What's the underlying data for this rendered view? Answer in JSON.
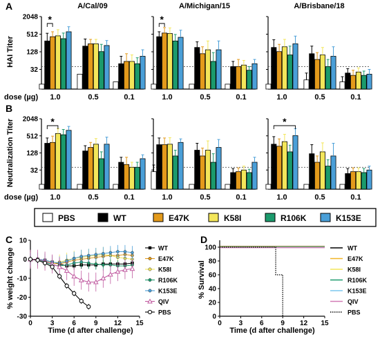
{
  "colors": {
    "PBS": "#ffffff",
    "WT": "#000000",
    "E47K": "#e39a1b",
    "K58I": "#f3e65a",
    "R106K": "#1b9a6c",
    "K153E": "#4a9fd8",
    "QIV": "#c05aa0"
  },
  "panel_labels": {
    "A": "A",
    "B": "B",
    "C": "C",
    "D": "D"
  },
  "dose_label": "dose (µg)",
  "significance_mark": "*",
  "bar_legend": [
    "PBS",
    "WT",
    "E47K",
    "K58I",
    "R106K",
    "K153E"
  ],
  "chart_data": [
    {
      "id": "A",
      "type": "bar",
      "ylabel": "HAI Titer",
      "y_scale": "log2",
      "ylim": [
        8,
        2048
      ],
      "y_ticks": [
        "32",
        "128",
        "512",
        "2048"
      ],
      "threshold": 40,
      "groups": [
        "1.0",
        "0.5",
        "0.1"
      ],
      "series_names": [
        "PBS",
        "WT",
        "E47K",
        "K58I",
        "R106K",
        "K153E"
      ],
      "subplots": [
        {
          "title": "A/Cal/09",
          "values": [
            [
              10,
              300,
              420,
              450,
              360,
              620
            ],
            [
              22,
              200,
              240,
              240,
              130,
              210
            ],
            [
              12,
              50,
              60,
              60,
              50,
              90
            ]
          ],
          "errors": [
            [
              0,
              250,
              200,
              280,
              200,
              300
            ],
            [
              0,
              150,
              100,
              100,
              100,
              100
            ],
            [
              0,
              40,
              50,
              40,
              30,
              60
            ]
          ]
        },
        {
          "title": "A/Michigan/15",
          "values": [
            [
              10,
              420,
              560,
              540,
              300,
              400
            ],
            [
              10,
              180,
              110,
              150,
              60,
              150
            ],
            [
              10,
              40,
              40,
              45,
              30,
              50
            ]
          ],
          "errors": [
            [
              0,
              200,
              300,
              300,
              200,
              300
            ],
            [
              0,
              100,
              80,
              150,
              60,
              150
            ],
            [
              0,
              20,
              30,
              20,
              10,
              20
            ]
          ]
        },
        {
          "title": "A/Brisbane/18",
          "values": [
            [
              10,
              180,
              130,
              190,
              100,
              240
            ],
            [
              14,
              110,
              70,
              100,
              40,
              90
            ],
            [
              12,
              24,
              20,
              26,
              20,
              22
            ]
          ],
          "errors": [
            [
              0,
              150,
              100,
              150,
              100,
              200
            ],
            [
              10,
              90,
              50,
              80,
              30,
              100
            ],
            [
              6,
              10,
              10,
              10,
              8,
              10
            ]
          ]
        }
      ],
      "significance": [
        [
          0,
          0,
          2
        ],
        [
          1,
          0,
          2
        ]
      ]
    },
    {
      "id": "B",
      "type": "bar",
      "ylabel": "Neutralization Titer",
      "y_scale": "log2",
      "ylim": [
        8,
        2048
      ],
      "y_ticks": [
        "32",
        "128",
        "512",
        "2048"
      ],
      "threshold": 40,
      "groups": [
        "1.0",
        "0.5",
        "0.1"
      ],
      "series_names": [
        "PBS",
        "WT",
        "E47K",
        "K58I",
        "R106K",
        "K153E"
      ],
      "subplots": [
        {
          "title": "",
          "values": [
            [
              10,
              280,
              300,
              620,
              560,
              800
            ],
            [
              10,
              150,
              200,
              260,
              80,
              260
            ],
            [
              10,
              60,
              50,
              40,
              40,
              80
            ]
          ],
          "errors": [
            [
              0,
              150,
              200,
              300,
              300,
              300
            ],
            [
              0,
              80,
              100,
              150,
              60,
              200
            ],
            [
              0,
              30,
              40,
              20,
              20,
              30
            ]
          ]
        },
        {
          "title": "",
          "values": [
            [
              28,
              250,
              250,
              260,
              100,
              300
            ],
            [
              10,
              160,
              100,
              160,
              60,
              200
            ],
            [
              10,
              26,
              28,
              32,
              26,
              60
            ]
          ],
          "errors": [
            [
              20,
              180,
              180,
              180,
              60,
              100
            ],
            [
              0,
              120,
              90,
              180,
              60,
              180
            ],
            [
              0,
              10,
              10,
              12,
              8,
              30
            ]
          ]
        },
        {
          "title": "",
          "values": [
            [
              10,
              260,
              220,
              320,
              140,
              520
            ],
            [
              10,
              120,
              60,
              140,
              44,
              100
            ],
            [
              10,
              24,
              28,
              28,
              26,
              32
            ]
          ],
          "errors": [
            [
              0,
              220,
              180,
              260,
              100,
              400
            ],
            [
              0,
              130,
              40,
              150,
              30,
              180
            ],
            [
              0,
              12,
              10,
              10,
              10,
              12
            ]
          ]
        }
      ],
      "significance": [
        [
          0,
          0,
          3
        ],
        [
          2,
          0,
          5
        ]
      ]
    },
    {
      "id": "C",
      "type": "line",
      "xlabel": "Time (d after challenge)",
      "ylabel": "% weight change",
      "xlim": [
        0,
        15
      ],
      "ylim": [
        -30,
        10
      ],
      "x_ticks": [
        "0",
        "3",
        "6",
        "9",
        "12",
        "15"
      ],
      "y_ticks": [
        "-30",
        "-20",
        "-10",
        "0",
        "10"
      ],
      "x": [
        0,
        1,
        2,
        3,
        4,
        5,
        6,
        7,
        8,
        9,
        10,
        11,
        12,
        13,
        14
      ],
      "series": [
        {
          "name": "WT",
          "values": [
            0,
            0,
            -0.5,
            -1.5,
            -2.5,
            -3.5,
            -3.5,
            -3,
            -3,
            -3,
            -2.5,
            -2.5,
            -2.5,
            -2.5,
            -2
          ],
          "error": 2
        },
        {
          "name": "E47K",
          "values": [
            0,
            0,
            -1,
            -2,
            -2.5,
            -1.5,
            -0.5,
            0,
            0.5,
            1,
            1.5,
            2,
            2,
            2.5,
            2
          ],
          "error": 3
        },
        {
          "name": "K58I",
          "values": [
            0,
            0,
            -1,
            -2,
            -1.5,
            -0.5,
            0.5,
            1,
            1.5,
            2,
            2.5,
            2,
            1,
            0.5,
            0
          ],
          "error": 4
        },
        {
          "name": "R106K",
          "values": [
            0,
            0,
            -1.5,
            -3,
            -3.5,
            -3,
            -2,
            -1.5,
            -2,
            -2.5,
            -3,
            -3,
            -3.5,
            -3.5,
            -3
          ],
          "error": 3
        },
        {
          "name": "K153E",
          "values": [
            0,
            0,
            -0.5,
            -1.5,
            -2,
            -1,
            0.5,
            1.5,
            2,
            2.5,
            3,
            3.5,
            4,
            4,
            3.5
          ],
          "error": 3.5
        },
        {
          "name": "QIV",
          "values": [
            0,
            0,
            -1,
            -2.5,
            -4,
            -6,
            -9,
            -11,
            -12,
            -12,
            -10,
            -8,
            -6.5,
            -5.5,
            -5
          ],
          "error": 5
        },
        {
          "name": "PBS",
          "values": [
            0,
            -0.5,
            -2,
            -4,
            -9,
            -14,
            -18,
            -22,
            -25,
            null,
            null,
            null,
            null,
            null,
            null
          ],
          "error": 1.5
        }
      ]
    },
    {
      "id": "D",
      "type": "line",
      "xlabel": "Time (d after challenge)",
      "ylabel": "% Survival",
      "xlim": [
        0,
        15
      ],
      "ylim": [
        0,
        110
      ],
      "x_ticks": [
        "0",
        "3",
        "6",
        "9",
        "12",
        "15"
      ],
      "y_ticks": [
        "0",
        "20",
        "40",
        "60",
        "80",
        "100"
      ],
      "series": [
        {
          "name": "WT",
          "steps": [
            [
              0,
              100
            ],
            [
              15,
              100
            ]
          ]
        },
        {
          "name": "E47K",
          "steps": [
            [
              0,
              100
            ],
            [
              15,
              100
            ]
          ]
        },
        {
          "name": "K58I",
          "steps": [
            [
              0,
              100
            ],
            [
              15,
              100
            ]
          ]
        },
        {
          "name": "R106K",
          "steps": [
            [
              0,
              100
            ],
            [
              15,
              100
            ]
          ]
        },
        {
          "name": "K153E",
          "steps": [
            [
              0,
              100
            ],
            [
              15,
              100
            ]
          ]
        },
        {
          "name": "QIV",
          "steps": [
            [
              0,
              100
            ],
            [
              15,
              100
            ]
          ]
        },
        {
          "name": "PBS",
          "steps": [
            [
              0,
              100
            ],
            [
              8,
              100
            ],
            [
              8,
              60
            ],
            [
              9,
              60
            ],
            [
              9,
              0
            ]
          ]
        }
      ]
    }
  ]
}
